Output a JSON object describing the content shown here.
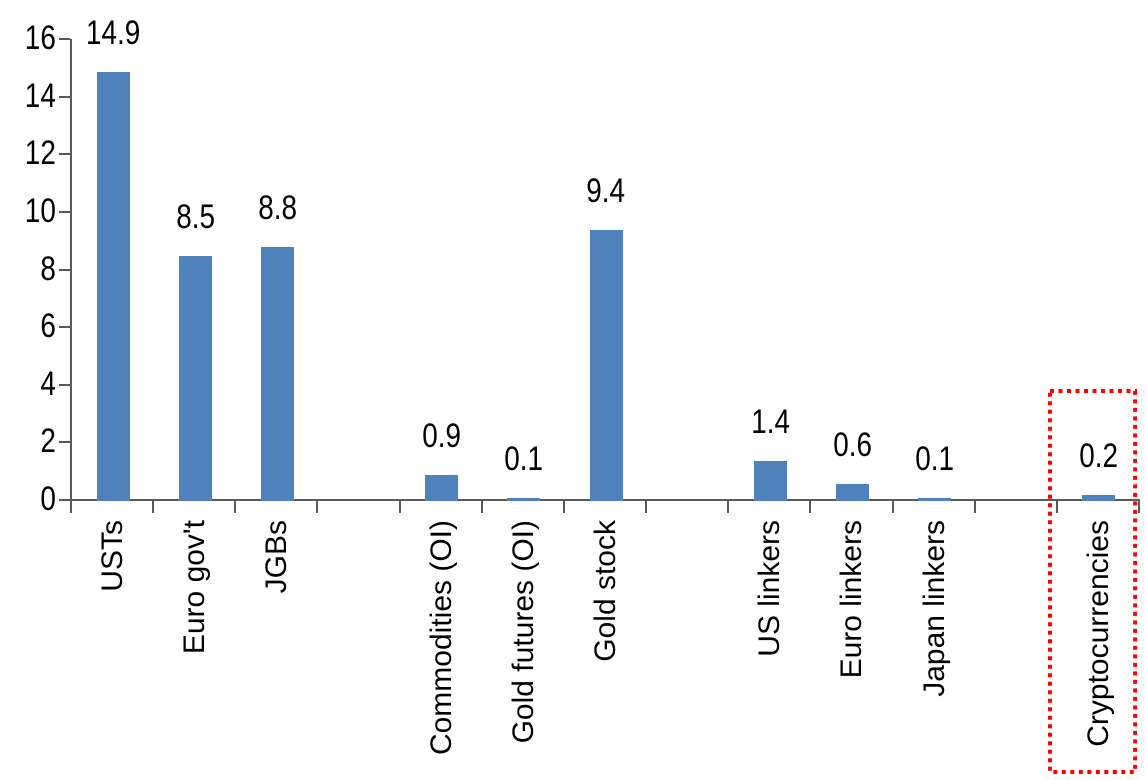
{
  "chart_data": {
    "type": "bar",
    "title": "",
    "xlabel": "",
    "ylabel": "",
    "ylim": [
      0,
      16
    ],
    "yticks": [
      0,
      2,
      4,
      6,
      8,
      10,
      12,
      14,
      16
    ],
    "grid": false,
    "legend": false,
    "bar_color": "#4F81BD",
    "axis_color": "#595959",
    "text_color": "#000000",
    "total_slots": 13,
    "category_label_rotation_deg": 90,
    "items": [
      {
        "label": "USTs",
        "value": 14.9,
        "value_label": "14.9",
        "slot": 0
      },
      {
        "label": "Euro gov't",
        "value": 8.5,
        "value_label": "8.5",
        "slot": 1
      },
      {
        "label": "JGBs",
        "value": 8.8,
        "value_label": "8.8",
        "slot": 2
      },
      {
        "label": "Commodities (OI)",
        "value": 0.9,
        "value_label": "0.9",
        "slot": 4
      },
      {
        "label": "Gold futures (OI)",
        "value": 0.1,
        "value_label": "0.1",
        "slot": 5
      },
      {
        "label": "Gold stock",
        "value": 9.4,
        "value_label": "9.4",
        "slot": 6
      },
      {
        "label": "US linkers",
        "value": 1.4,
        "value_label": "1.4",
        "slot": 8
      },
      {
        "label": "Euro linkers",
        "value": 0.6,
        "value_label": "0.6",
        "slot": 9
      },
      {
        "label": "Japan linkers",
        "value": 0.1,
        "value_label": "0.1",
        "slot": 10
      },
      {
        "label": "Cryptocurrencies",
        "value": 0.2,
        "value_label": "0.2",
        "slot": 12
      }
    ],
    "highlight": {
      "label": "Cryptocurrencies",
      "slot": 12,
      "border_color": "#FF0000",
      "border_style": "dotted"
    }
  }
}
